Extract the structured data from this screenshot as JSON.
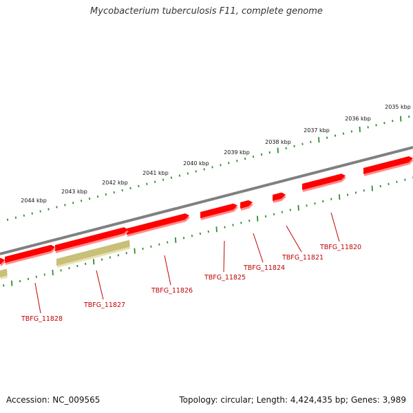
{
  "title": "Mycobacterium tuberculosis F11, complete genome",
  "footer": {
    "accession": "Accession: NC_009565",
    "summary": "Topology: circular; Length: 4,424,435 bp; Genes: 3,989"
  },
  "colors": {
    "backbone": "#808080",
    "forward_gene": "#ff0000",
    "reverse_gene": "#c8bf78",
    "tick": "#2e8b2e",
    "label": "#c00000"
  },
  "kbp_scale": [
    {
      "kbp": 2035,
      "label": "2035 kbp"
    },
    {
      "kbp": 2036,
      "label": "2036 kbp"
    },
    {
      "kbp": 2037,
      "label": "2037 kbp"
    },
    {
      "kbp": 2038,
      "label": "2038 kbp"
    },
    {
      "kbp": 2039,
      "label": "2039 kbp"
    },
    {
      "kbp": 2040,
      "label": "2040 kbp"
    },
    {
      "kbp": 2041,
      "label": "2041 kbp"
    },
    {
      "kbp": 2042,
      "label": "2042 kbp"
    },
    {
      "kbp": 2043,
      "label": "2043 kbp"
    },
    {
      "kbp": 2044,
      "label": "2044 kbp"
    }
  ],
  "genes": [
    {
      "name": "TBFG_11820",
      "strand": "+"
    },
    {
      "name": "TBFG_11821",
      "strand": "+"
    },
    {
      "name": "TBFG_11824",
      "strand": "+"
    },
    {
      "name": "TBFG_11825",
      "strand": "+"
    },
    {
      "name": "TBFG_11826",
      "strand": "+"
    },
    {
      "name": "TBFG_11827",
      "strand": "-"
    },
    {
      "name": "TBFG_11828",
      "strand": "+"
    }
  ]
}
